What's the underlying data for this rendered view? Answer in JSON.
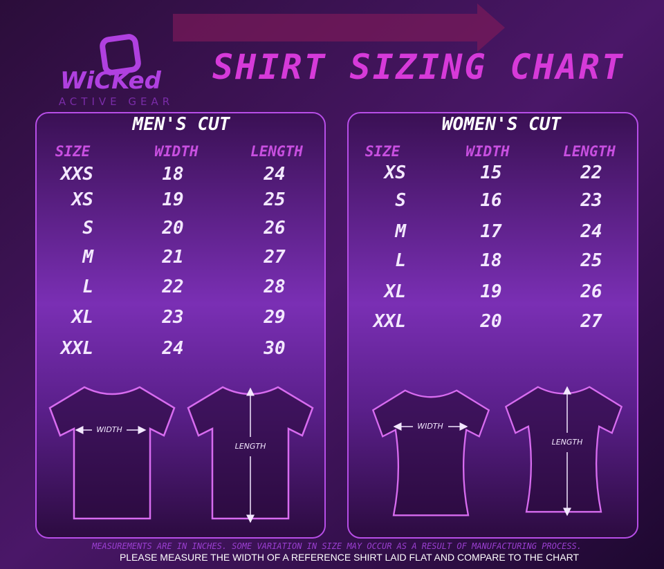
{
  "brand": {
    "name": "WiCKed",
    "tagline": "ACTIVE GEAR"
  },
  "title": "SHIRT SIZING CHART",
  "men": {
    "heading": "MEN'S CUT",
    "columns": [
      "SIZE",
      "WIDTH",
      "LENGTH"
    ],
    "rows": [
      [
        "XXS",
        18,
        24
      ],
      [
        "XS",
        19,
        25
      ],
      [
        "S",
        20,
        26
      ],
      [
        "M",
        21,
        27
      ],
      [
        "L",
        22,
        28
      ],
      [
        "XL",
        23,
        29
      ],
      [
        "XXL",
        24,
        30
      ]
    ],
    "width_label": "WIDTH",
    "length_label": "LENGTH"
  },
  "women": {
    "heading": "WOMEN'S CUT",
    "columns": [
      "SIZE",
      "WIDTH",
      "LENGTH"
    ],
    "rows": [
      [
        "XS",
        15,
        22
      ],
      [
        "S",
        16,
        23
      ],
      [
        "M",
        17,
        24
      ],
      [
        "L",
        18,
        25
      ],
      [
        "XL",
        19,
        26
      ],
      [
        "XXL",
        20,
        27
      ]
    ],
    "width_label": "WIDTH",
    "length_label": "LENGTH"
  },
  "footer": {
    "note": "MEASUREMENTS ARE IN INCHES. SOME VARIATION IN SIZE MAY OCCUR AS A RESULT OF MANUFACTURING PROCESS.",
    "instruction": "PLEASE MEASURE THE WIDTH OF A REFERENCE SHIRT LAID FLAT AND COMPARE TO THE CHART"
  }
}
